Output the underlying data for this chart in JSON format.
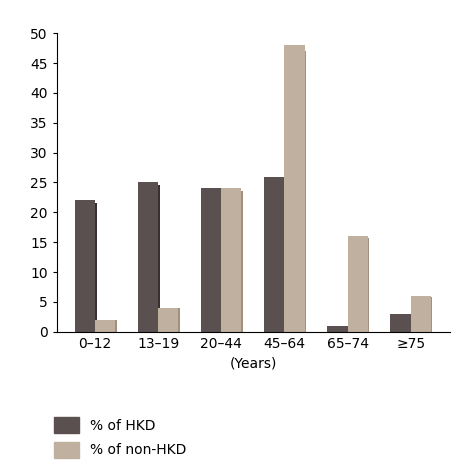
{
  "categories": [
    "0–12",
    "13–19",
    "20–44",
    "45–64",
    "65–74",
    "≥75"
  ],
  "hkd_values": [
    22,
    25,
    24,
    26,
    1,
    3
  ],
  "non_hkd_values": [
    2,
    4,
    24,
    48,
    16,
    6
  ],
  "hkd_color": "#5a5050",
  "hkd_edge_color": "#3a3030",
  "non_hkd_color": "#c0b0a0",
  "non_hkd_edge_color": "#a09080",
  "xlabel": "(Years)",
  "ylabel": "",
  "ylim": [
    0,
    50
  ],
  "yticks": [
    0,
    5,
    10,
    15,
    20,
    25,
    30,
    35,
    40,
    45,
    50
  ],
  "legend_labels": [
    "% of HKD",
    "% of non-HKD"
  ],
  "bar_width": 0.32,
  "background_color": "#ffffff",
  "figsize": [
    4.74,
    4.74
  ],
  "dpi": 100
}
